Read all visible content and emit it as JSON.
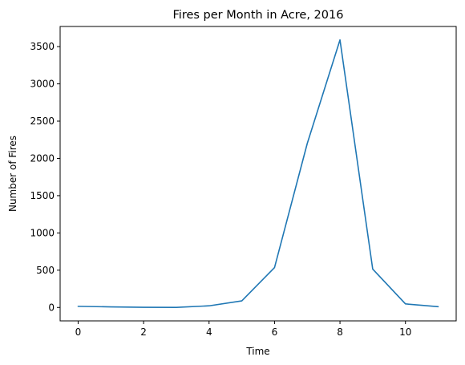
{
  "chart_data": {
    "type": "line",
    "title": "Fires per Month in Acre, 2016",
    "xlabel": "Time",
    "ylabel": "Number of Fires",
    "x": [
      0,
      1,
      2,
      3,
      4,
      5,
      6,
      7,
      8,
      9,
      10,
      11
    ],
    "series": [
      {
        "values": [
          15,
          8,
          2,
          1,
          22,
          88,
          535,
          2200,
          3590,
          515,
          48,
          10
        ],
        "color": "#1f77b4"
      }
    ],
    "xlim": [
      -0.55,
      11.55
    ],
    "ylim": [
      -180,
      3770
    ],
    "xticks": [
      0,
      2,
      4,
      6,
      8,
      10
    ],
    "yticks": [
      0,
      500,
      1000,
      1500,
      2000,
      2500,
      3000,
      3500
    ],
    "grid": false,
    "legend": "none"
  }
}
